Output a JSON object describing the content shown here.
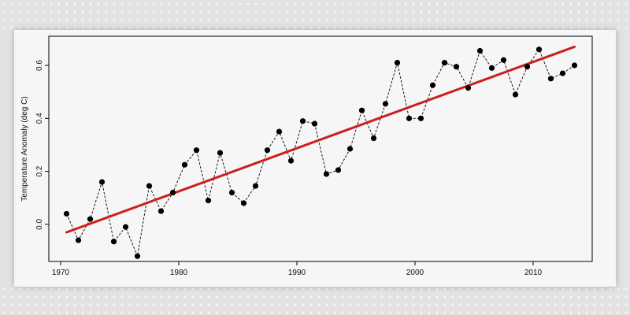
{
  "chart_data": {
    "type": "line",
    "title": "",
    "xlabel": "",
    "ylabel": "Temperature Anomaly (deg C)",
    "xlim": [
      1969,
      2015
    ],
    "ylim": [
      -0.14,
      0.71
    ],
    "x_ticks": [
      1970,
      1980,
      1990,
      2000,
      2010
    ],
    "x_tick_labels": [
      "1970",
      "1980",
      "1990",
      "2000",
      "2010"
    ],
    "y_ticks": [
      0.0,
      0.2,
      0.4,
      0.6
    ],
    "y_tick_labels": [
      "0.0",
      "0.2",
      "0.4",
      "0.6"
    ],
    "grid": false,
    "series": [
      {
        "style": "dashed line with filled circle markers",
        "color": "#000000",
        "x": [
          1970.5,
          1971.5,
          1972.5,
          1973.5,
          1974.5,
          1975.5,
          1976.5,
          1977.5,
          1978.5,
          1979.5,
          1980.5,
          1981.5,
          1982.5,
          1983.5,
          1984.5,
          1985.5,
          1986.5,
          1987.5,
          1988.5,
          1989.5,
          1990.5,
          1991.5,
          1992.5,
          1993.5,
          1994.5,
          1995.5,
          1996.5,
          1997.5,
          1998.5,
          1999.5,
          2000.5,
          2001.5,
          2002.5,
          2003.5,
          2004.5,
          2005.5,
          2006.5,
          2007.5,
          2008.5,
          2009.5,
          2010.5,
          2011.5,
          2012.5,
          2013.5
        ],
        "values": [
          0.04,
          -0.06,
          0.02,
          0.16,
          -0.065,
          -0.01,
          -0.12,
          0.145,
          0.05,
          0.12,
          0.225,
          0.28,
          0.09,
          0.27,
          0.12,
          0.08,
          0.145,
          0.28,
          0.35,
          0.24,
          0.39,
          0.38,
          0.19,
          0.205,
          0.285,
          0.43,
          0.325,
          0.455,
          0.61,
          0.4,
          0.4,
          0.525,
          0.61,
          0.595,
          0.515,
          0.655,
          0.59,
          0.62,
          0.49,
          0.595,
          0.66,
          0.55,
          0.57,
          0.6
        ]
      },
      {
        "style": "linear trend line",
        "color": "#cc1f1f",
        "x": [
          1970.5,
          2013.5
        ],
        "values": [
          -0.03,
          0.67
        ]
      }
    ]
  }
}
